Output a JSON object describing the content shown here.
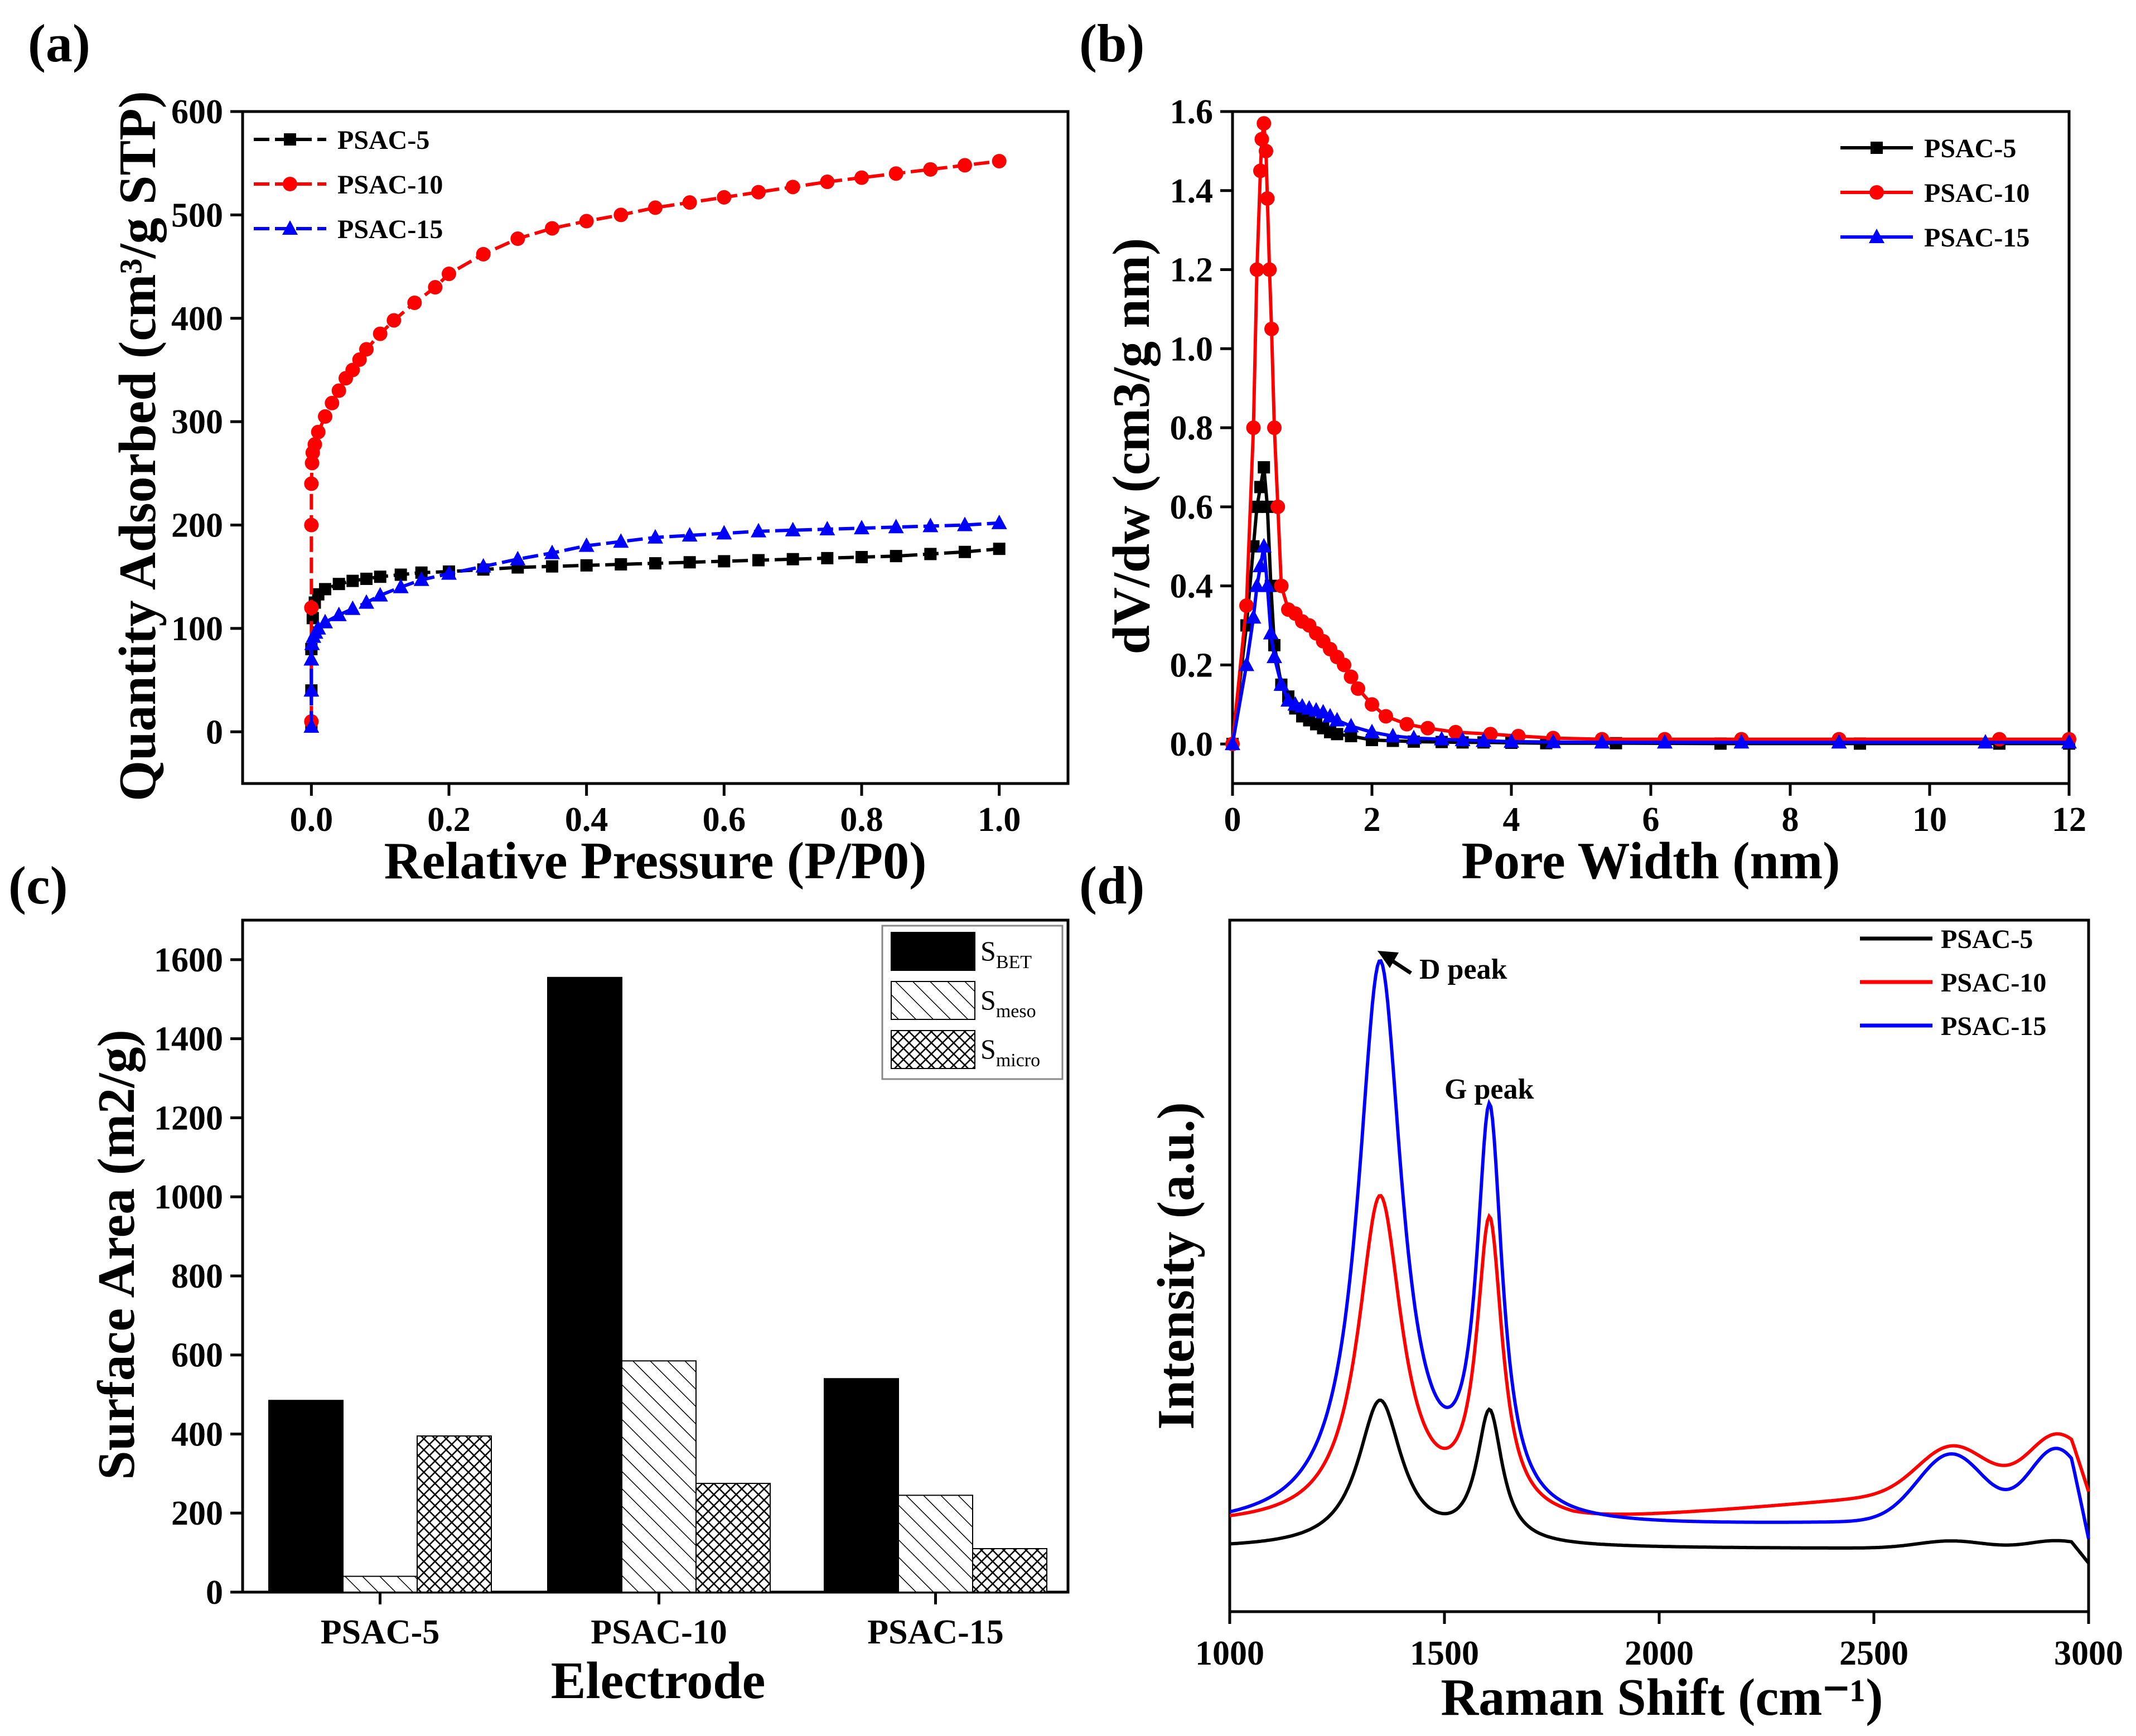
{
  "colors": {
    "black": "#000000",
    "red": "#ff0000",
    "blue": "#0000ff"
  },
  "chart_data": [
    {
      "id": "a",
      "panel_label": "(a)",
      "type": "line",
      "xlabel": "Relative Pressure (P/P0)",
      "ylabel": "Quantity Adsorbed (cm³/g STP)",
      "xlim": [
        -0.1,
        1.1
      ],
      "ylim": [
        -50,
        600
      ],
      "xticks": [
        "0.0",
        "0.2",
        "0.4",
        "0.6",
        "0.8",
        "1.0"
      ],
      "yticks": [
        "0",
        "100",
        "200",
        "300",
        "400",
        "500",
        "600"
      ],
      "legend_position": "top-left",
      "series": [
        {
          "name": "PSAC-5",
          "color": "#000000",
          "marker": "square",
          "x": [
            0.0,
            0.0,
            0.0,
            0.002,
            0.005,
            0.01,
            0.02,
            0.04,
            0.06,
            0.08,
            0.1,
            0.13,
            0.16,
            0.2,
            0.25,
            0.3,
            0.35,
            0.4,
            0.45,
            0.5,
            0.55,
            0.6,
            0.65,
            0.7,
            0.75,
            0.8,
            0.85,
            0.9,
            0.95,
            1.0
          ],
          "y": [
            5,
            40,
            80,
            110,
            125,
            133,
            138,
            143,
            146,
            148,
            150,
            152,
            154,
            155,
            157,
            159,
            160,
            161,
            162,
            163,
            164,
            165,
            166,
            167,
            168,
            169,
            170,
            172,
            174,
            177
          ]
        },
        {
          "name": "PSAC-10",
          "color": "#ff0000",
          "marker": "circle",
          "x": [
            0.0,
            0.0,
            0.0,
            0.0,
            0.001,
            0.002,
            0.005,
            0.01,
            0.02,
            0.03,
            0.04,
            0.05,
            0.06,
            0.07,
            0.08,
            0.1,
            0.12,
            0.15,
            0.18,
            0.2,
            0.25,
            0.3,
            0.35,
            0.4,
            0.45,
            0.5,
            0.55,
            0.6,
            0.65,
            0.7,
            0.75,
            0.8,
            0.85,
            0.9,
            0.95,
            1.0
          ],
          "y": [
            10,
            120,
            200,
            240,
            260,
            270,
            278,
            290,
            305,
            318,
            330,
            342,
            350,
            360,
            370,
            385,
            398,
            415,
            430,
            443,
            462,
            477,
            487,
            494,
            500,
            507,
            512,
            517,
            522,
            527,
            532,
            536,
            540,
            544,
            548,
            552
          ]
        },
        {
          "name": "PSAC-15",
          "color": "#0000ff",
          "marker": "triangle",
          "x": [
            0.0,
            0.0,
            0.0,
            0.001,
            0.003,
            0.006,
            0.01,
            0.02,
            0.04,
            0.06,
            0.08,
            0.1,
            0.13,
            0.16,
            0.2,
            0.25,
            0.3,
            0.35,
            0.4,
            0.45,
            0.5,
            0.55,
            0.6,
            0.65,
            0.7,
            0.75,
            0.8,
            0.85,
            0.9,
            0.95,
            1.0
          ],
          "y": [
            5,
            40,
            70,
            85,
            92,
            96,
            100,
            106,
            113,
            119,
            125,
            132,
            140,
            147,
            153,
            160,
            167,
            173,
            180,
            184,
            188,
            190,
            192,
            194,
            195,
            196,
            197,
            198,
            199,
            200,
            202
          ]
        }
      ]
    },
    {
      "id": "b",
      "panel_label": "(b)",
      "type": "line",
      "xlabel": "Pore Width (nm)",
      "ylabel": "dV/dw (cm3/g nm)",
      "xlim": [
        0,
        12
      ],
      "ylim": [
        -0.1,
        1.6
      ],
      "xticks": [
        "0",
        "2",
        "4",
        "6",
        "8",
        "10",
        "12"
      ],
      "yticks": [
        "0.0",
        "0.2",
        "0.4",
        "0.6",
        "0.8",
        "1.0",
        "1.2",
        "1.4",
        "1.6"
      ],
      "legend_position": "top-right",
      "series": [
        {
          "name": "PSAC-5",
          "color": "#000000",
          "marker": "square",
          "x": [
            0.0,
            0.2,
            0.3,
            0.35,
            0.4,
            0.45,
            0.5,
            0.55,
            0.6,
            0.7,
            0.8,
            0.9,
            1.0,
            1.1,
            1.2,
            1.3,
            1.4,
            1.5,
            1.7,
            2.0,
            2.3,
            2.6,
            3.0,
            3.3,
            3.6,
            4.0,
            4.5,
            5.5,
            7,
            9,
            11,
            12
          ],
          "y": [
            0.0,
            0.3,
            0.5,
            0.6,
            0.65,
            0.7,
            0.6,
            0.4,
            0.25,
            0.15,
            0.12,
            0.09,
            0.07,
            0.06,
            0.05,
            0.04,
            0.03,
            0.025,
            0.02,
            0.01,
            0.008,
            0.006,
            0.005,
            0.004,
            0.004,
            0.003,
            0.002,
            0.002,
            0.001,
            0.001,
            0.001,
            0.001
          ]
        },
        {
          "name": "PSAC-10",
          "color": "#ff0000",
          "marker": "circle",
          "x": [
            0.0,
            0.2,
            0.3,
            0.35,
            0.4,
            0.42,
            0.45,
            0.48,
            0.5,
            0.53,
            0.56,
            0.6,
            0.65,
            0.7,
            0.8,
            0.9,
            1.0,
            1.1,
            1.2,
            1.3,
            1.4,
            1.5,
            1.6,
            1.7,
            1.8,
            2.0,
            2.2,
            2.5,
            2.8,
            3.2,
            3.7,
            4.1,
            4.6,
            5.3,
            6.2,
            7.3,
            8.7,
            11.0,
            12
          ],
          "y": [
            0.0,
            0.35,
            0.8,
            1.2,
            1.45,
            1.53,
            1.57,
            1.5,
            1.38,
            1.2,
            1.05,
            0.8,
            0.6,
            0.4,
            0.34,
            0.33,
            0.31,
            0.3,
            0.28,
            0.26,
            0.24,
            0.22,
            0.2,
            0.17,
            0.14,
            0.1,
            0.07,
            0.05,
            0.04,
            0.03,
            0.025,
            0.02,
            0.015,
            0.012,
            0.012,
            0.012,
            0.012,
            0.012,
            0.012
          ]
        },
        {
          "name": "PSAC-15",
          "color": "#0000ff",
          "marker": "triangle",
          "x": [
            0.0,
            0.2,
            0.3,
            0.35,
            0.4,
            0.45,
            0.5,
            0.55,
            0.6,
            0.7,
            0.8,
            0.9,
            1.0,
            1.1,
            1.2,
            1.3,
            1.4,
            1.5,
            1.7,
            2.0,
            2.3,
            2.6,
            3.0,
            3.3,
            3.6,
            4.0,
            4.6,
            5.3,
            6.2,
            7.3,
            8.7,
            10.8,
            12
          ],
          "y": [
            0.0,
            0.2,
            0.32,
            0.4,
            0.45,
            0.5,
            0.4,
            0.28,
            0.22,
            0.15,
            0.11,
            0.1,
            0.095,
            0.09,
            0.085,
            0.08,
            0.07,
            0.06,
            0.045,
            0.03,
            0.02,
            0.015,
            0.012,
            0.01,
            0.008,
            0.006,
            0.005,
            0.004,
            0.004,
            0.004,
            0.004,
            0.004,
            0.004
          ]
        }
      ]
    },
    {
      "id": "c",
      "panel_label": "(c)",
      "type": "bar",
      "xlabel": "Electrode",
      "ylabel": "Surface Area (m2/g)",
      "categories": [
        "PSAC-5",
        "PSAC-10",
        "PSAC-15"
      ],
      "ylim": [
        0,
        1700
      ],
      "yticks": [
        "0",
        "200",
        "400",
        "600",
        "800",
        "1000",
        "1200",
        "1400",
        "1600"
      ],
      "legend_position": "top-right",
      "series": [
        {
          "name": "S",
          "sub": "BET",
          "fill": "solid",
          "values": [
            485,
            1555,
            540
          ]
        },
        {
          "name": "S",
          "sub": "meso",
          "fill": "hatch",
          "values": [
            40,
            585,
            245
          ]
        },
        {
          "name": "S",
          "sub": "micro",
          "fill": "crosshatch",
          "values": [
            395,
            275,
            110
          ]
        }
      ]
    },
    {
      "id": "d",
      "panel_label": "(d)",
      "type": "line",
      "xlabel": "Raman Shift (cm⁻¹)",
      "ylabel": "Intensity (a.u.)",
      "xlim": [
        1000,
        3000
      ],
      "xticks": [
        "1000",
        "1500",
        "2000",
        "2500",
        "3000"
      ],
      "legend_position": "top-right",
      "annotations": [
        {
          "text": "D peak",
          "x": 1350
        },
        {
          "text": "G peak",
          "x": 1605
        }
      ],
      "series": [
        {
          "name": "PSAC-5",
          "color": "#000000",
          "base": 0.05,
          "d_amp": 0.395,
          "g_amp": 0.355,
          "tail": 0.0,
          "bump_amp": 0.02
        },
        {
          "name": "PSAC-10",
          "color": "#ff0000",
          "base": 0.11,
          "d_amp": 0.88,
          "g_amp": 0.79,
          "tail": 0.13,
          "bump_amp": 0.12
        },
        {
          "name": "PSAC-15",
          "color": "#0000ff",
          "base": 0.1,
          "d_amp": 1.52,
          "g_amp": 1.07,
          "tail": 0.03,
          "bump_amp": 0.18
        }
      ]
    }
  ]
}
